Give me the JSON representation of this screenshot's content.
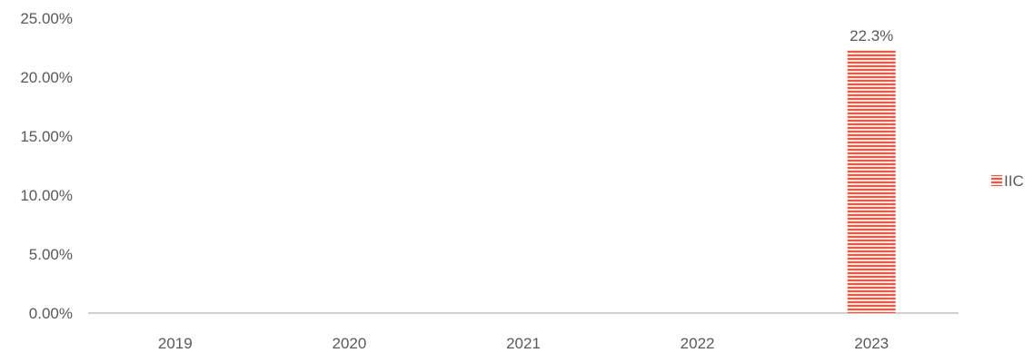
{
  "chart_data": {
    "type": "bar",
    "categories": [
      "2019",
      "2020",
      "2021",
      "2022",
      "2023"
    ],
    "series": [
      {
        "name": "IIC",
        "values": [
          0,
          0,
          0,
          0,
          22.3
        ],
        "data_labels": [
          "",
          "",
          "",
          "",
          "22.3%"
        ]
      }
    ],
    "y_ticks": [
      "0.00%",
      "5.00%",
      "10.00%",
      "15.00%",
      "20.00%",
      "25.00%"
    ],
    "ylim": [
      0,
      25
    ],
    "grid": false,
    "legend_position": "right",
    "colors": {
      "bar_stripe": "#e8574f",
      "bar_fill": "#f9e3d1",
      "axis": "#d0d0d0"
    }
  }
}
